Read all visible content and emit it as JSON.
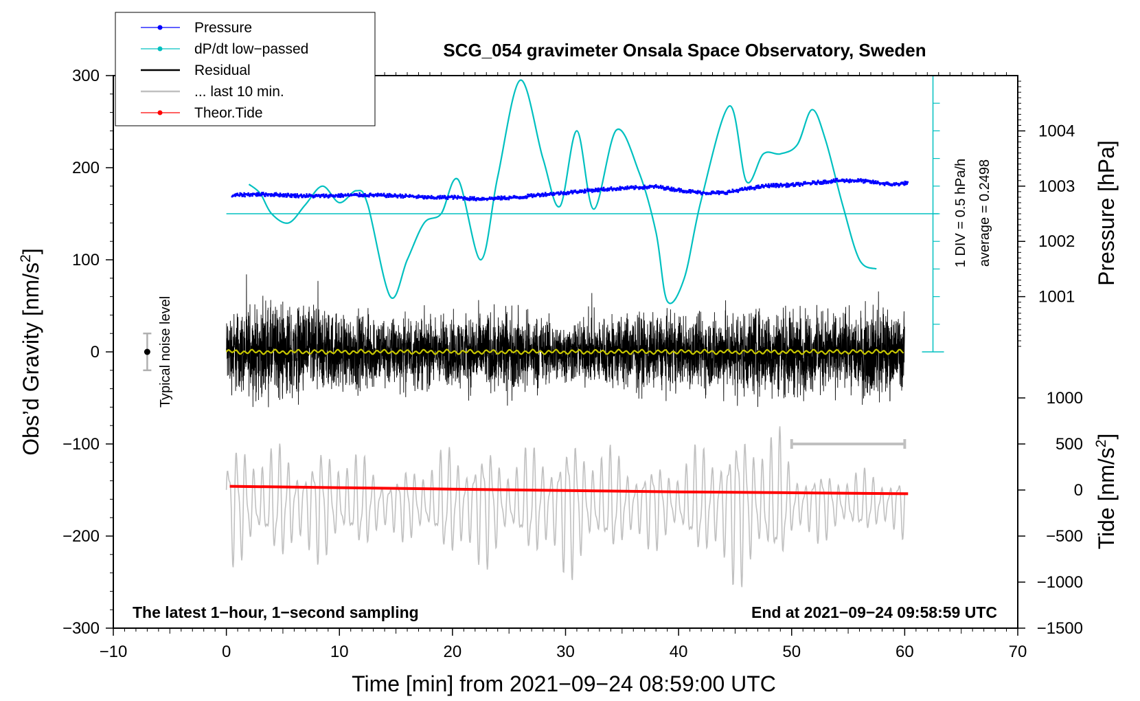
{
  "chart_data": {
    "type": "line",
    "title": "SCG_054 gravimeter Onsala Space Observatory, Sweden",
    "xlabel": "Time [min] from 2021−09−24 08:59:00 UTC",
    "ylabel_left": "Obs’d Gravity [nm/s",
    "ylabel_left_sup": "2",
    "ylabel_left_close": "]",
    "ylabel_right_pressure": "Pressure [hPa]",
    "ylabel_right_tide": "Tide [nm/s",
    "ylabel_right_tide_sup": "2",
    "ylabel_right_tide_close": "]",
    "xlim": [
      -10,
      70
    ],
    "ylim": [
      -300,
      300
    ],
    "x_ticks": [
      "−10",
      "0",
      "10",
      "20",
      "30",
      "40",
      "50",
      "60",
      "70"
    ],
    "x_tick_values": [
      -10,
      0,
      10,
      20,
      30,
      40,
      50,
      60,
      70
    ],
    "y_ticks": [
      "300",
      "200",
      "100",
      "0",
      "−100",
      "−200",
      "−300"
    ],
    "y_tick_values": [
      300,
      200,
      100,
      0,
      -100,
      -200,
      -300
    ],
    "pressure_axis": {
      "ticks": [
        "1004",
        "1003",
        "1002",
        "1001"
      ],
      "tick_values": [
        1004,
        1003,
        1002,
        1001
      ],
      "hpa_per_grav_unit": 0.01667,
      "hpa_at_grav_zero": 1000
    },
    "tide_axis": {
      "ticks": [
        "1000",
        "500",
        "0",
        "−500",
        "−1000",
        "−1500"
      ],
      "tick_values": [
        1000,
        500,
        0,
        -500,
        -1000,
        -1500
      ],
      "tide_per_grav_unit": 10,
      "tide_at_grav_zero": 1500
    },
    "dpdt_scale": {
      "div_label": "1 DIV = 0.5 hPa/h",
      "average_label": "average = 0.2498",
      "zero_level": 150,
      "div_grav_units": 30,
      "bar_x": 62.5,
      "bar_range": [
        0,
        300
      ]
    },
    "noise_indicator": {
      "label": "Typical noise level",
      "x": -7,
      "value": 0,
      "range": [
        -20,
        20
      ]
    },
    "last10_bar": {
      "x_range": [
        50,
        60
      ],
      "y": -100
    },
    "legend": [
      {
        "label": "Pressure",
        "color": "#0000ff",
        "style": "line-dot"
      },
      {
        "label": "dP/dt low−passed",
        "color": "#00c0c0",
        "style": "line-dot"
      },
      {
        "label": "Residual",
        "color": "#000000",
        "style": "line"
      },
      {
        "label": "... last 10 min.",
        "color": "#c0c0c0",
        "style": "line"
      },
      {
        "label": "Theor.Tide",
        "color": "#ff0000",
        "style": "line-dot"
      }
    ],
    "footer_left": "The latest 1−hour, 1−second sampling",
    "footer_right": "End at 2021−09−24 09:58:59 UTC",
    "series": [
      {
        "name": "Pressure",
        "unit": "hPa",
        "color": "#0000ff",
        "x": [
          0.5,
          2,
          4,
          6,
          8,
          10,
          12,
          14,
          16,
          18,
          20,
          22,
          24,
          26,
          28,
          30,
          32,
          34,
          36,
          38,
          40,
          42,
          44,
          46,
          48,
          50,
          52,
          54,
          56,
          58,
          59,
          60.3
        ],
        "values": [
          1002.83,
          1002.85,
          1002.85,
          1002.83,
          1002.82,
          1002.83,
          1002.84,
          1002.83,
          1002.82,
          1002.79,
          1002.8,
          1002.77,
          1002.78,
          1002.8,
          1002.85,
          1002.88,
          1002.92,
          1002.95,
          1002.97,
          1002.99,
          1002.93,
          1002.88,
          1002.88,
          1002.95,
          1003.01,
          1003.02,
          1003.06,
          1003.1,
          1003.1,
          1003.05,
          1003.03,
          1003.06
        ]
      },
      {
        "name": "dP/dt low−passed",
        "unit": "grav-plot",
        "color": "#00c0c0",
        "x": [
          2,
          3,
          4,
          5.5,
          7,
          8.5,
          10,
          11.5,
          12.5,
          14.5,
          16,
          17.5,
          19,
          20.5,
          22.5,
          24,
          26,
          28,
          29.5,
          31,
          32.5,
          34.5,
          36.5,
          38,
          39,
          40.5,
          42,
          44.5,
          46,
          47.5,
          49,
          50.5,
          51.8,
          53,
          54.5,
          56,
          57.5
        ],
        "values": [
          182,
          172,
          150,
          140,
          160,
          180,
          162,
          175,
          160,
          60,
          100,
          140,
          150,
          187,
          100,
          190,
          295,
          210,
          158,
          240,
          155,
          241,
          195,
          130,
          55,
          80,
          165,
          267,
          185,
          215,
          215,
          225,
          263,
          230,
          160,
          100,
          90
        ]
      },
      {
        "name": "Residual",
        "unit": "nm/s2",
        "color": "#000000",
        "x_range": [
          0,
          60
        ],
        "envelope": {
          "x": [
            0,
            5,
            10,
            15,
            20,
            25,
            30,
            35,
            40,
            45,
            50,
            55,
            57.5,
            60
          ],
          "amplitude": [
            60,
            75,
            60,
            55,
            55,
            65,
            45,
            60,
            55,
            65,
            65,
            55,
            75,
            55
          ]
        }
      },
      {
        "name": "Residual smoothed",
        "unit": "nm/s2",
        "color": "#c8c800",
        "x_range": [
          0,
          60
        ],
        "values_approx": 0
      },
      {
        "name": "... last 10 min.",
        "unit": "grav-plot",
        "color": "#c0c0c0",
        "x_range": [
          0,
          60
        ],
        "center": -165,
        "envelope": {
          "x": [
            0,
            5,
            10,
            15,
            20,
            22,
            25,
            30,
            35,
            40,
            44,
            47,
            49,
            50,
            55,
            60
          ],
          "amplitude": [
            75,
            70,
            70,
            40,
            70,
            85,
            55,
            90,
            60,
            50,
            95,
            100,
            85,
            50,
            40,
            40
          ]
        }
      },
      {
        "name": "Theor.Tide",
        "unit": "nm/s2",
        "color": "#ff0000",
        "x": [
          0.3,
          10,
          20,
          30,
          40,
          50,
          60.3
        ],
        "values": [
          -146,
          -147.5,
          -149,
          -150.5,
          -152,
          -153,
          -154
        ]
      }
    ]
  }
}
